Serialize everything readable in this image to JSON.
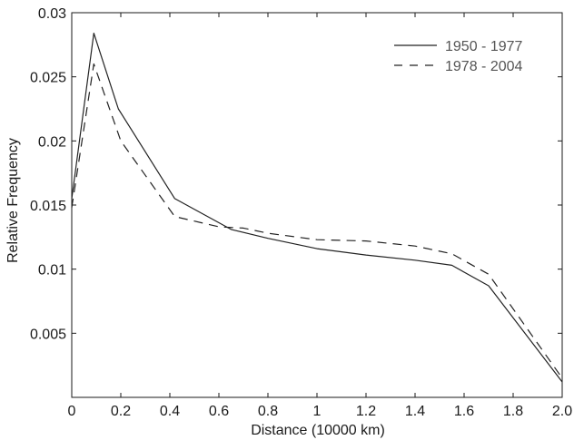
{
  "chart_data": {
    "type": "line",
    "title": "",
    "xlabel": "Distance (10000 km)",
    "ylabel": "Relative Frequency",
    "xlim": [
      0,
      2.0
    ],
    "ylim": [
      0,
      0.03
    ],
    "x_ticks": [
      0,
      0.2,
      0.4,
      0.6,
      0.8,
      1,
      1.2,
      1.4,
      1.6,
      1.8,
      2.0
    ],
    "x_tick_labels": [
      "0",
      "0.2",
      "0.4",
      "0.6",
      "0.8",
      "1",
      "1.2",
      "1.4",
      "1.6",
      "1.8",
      "2.0"
    ],
    "y_ticks": [
      0,
      0.005,
      0.01,
      0.015,
      0.02,
      0.025,
      0.03
    ],
    "y_tick_labels": [
      "",
      "0.005",
      "0.01",
      "0.015",
      "0.02",
      "0.025",
      "0.03"
    ],
    "grid": false,
    "legend_position": "top-right",
    "series": [
      {
        "name": "1950 - 1977",
        "style": "solid",
        "color": "#222222",
        "x": [
          0,
          0.09,
          0.19,
          0.42,
          0.65,
          0.8,
          1.0,
          1.2,
          1.4,
          1.55,
          1.7,
          2.0
        ],
        "y": [
          0.0155,
          0.0284,
          0.0225,
          0.0155,
          0.0131,
          0.0124,
          0.0116,
          0.0111,
          0.0107,
          0.0103,
          0.0087,
          0.0012
        ]
      },
      {
        "name": "1978 - 2004",
        "style": "dashed",
        "color": "#222222",
        "x": [
          0,
          0.09,
          0.2,
          0.42,
          0.6,
          0.7,
          0.8,
          1.0,
          1.2,
          1.4,
          1.55,
          1.7,
          2.0
        ],
        "y": [
          0.0148,
          0.026,
          0.02,
          0.0141,
          0.0133,
          0.0132,
          0.0128,
          0.0123,
          0.0122,
          0.0118,
          0.0112,
          0.0096,
          0.0015
        ]
      }
    ]
  }
}
